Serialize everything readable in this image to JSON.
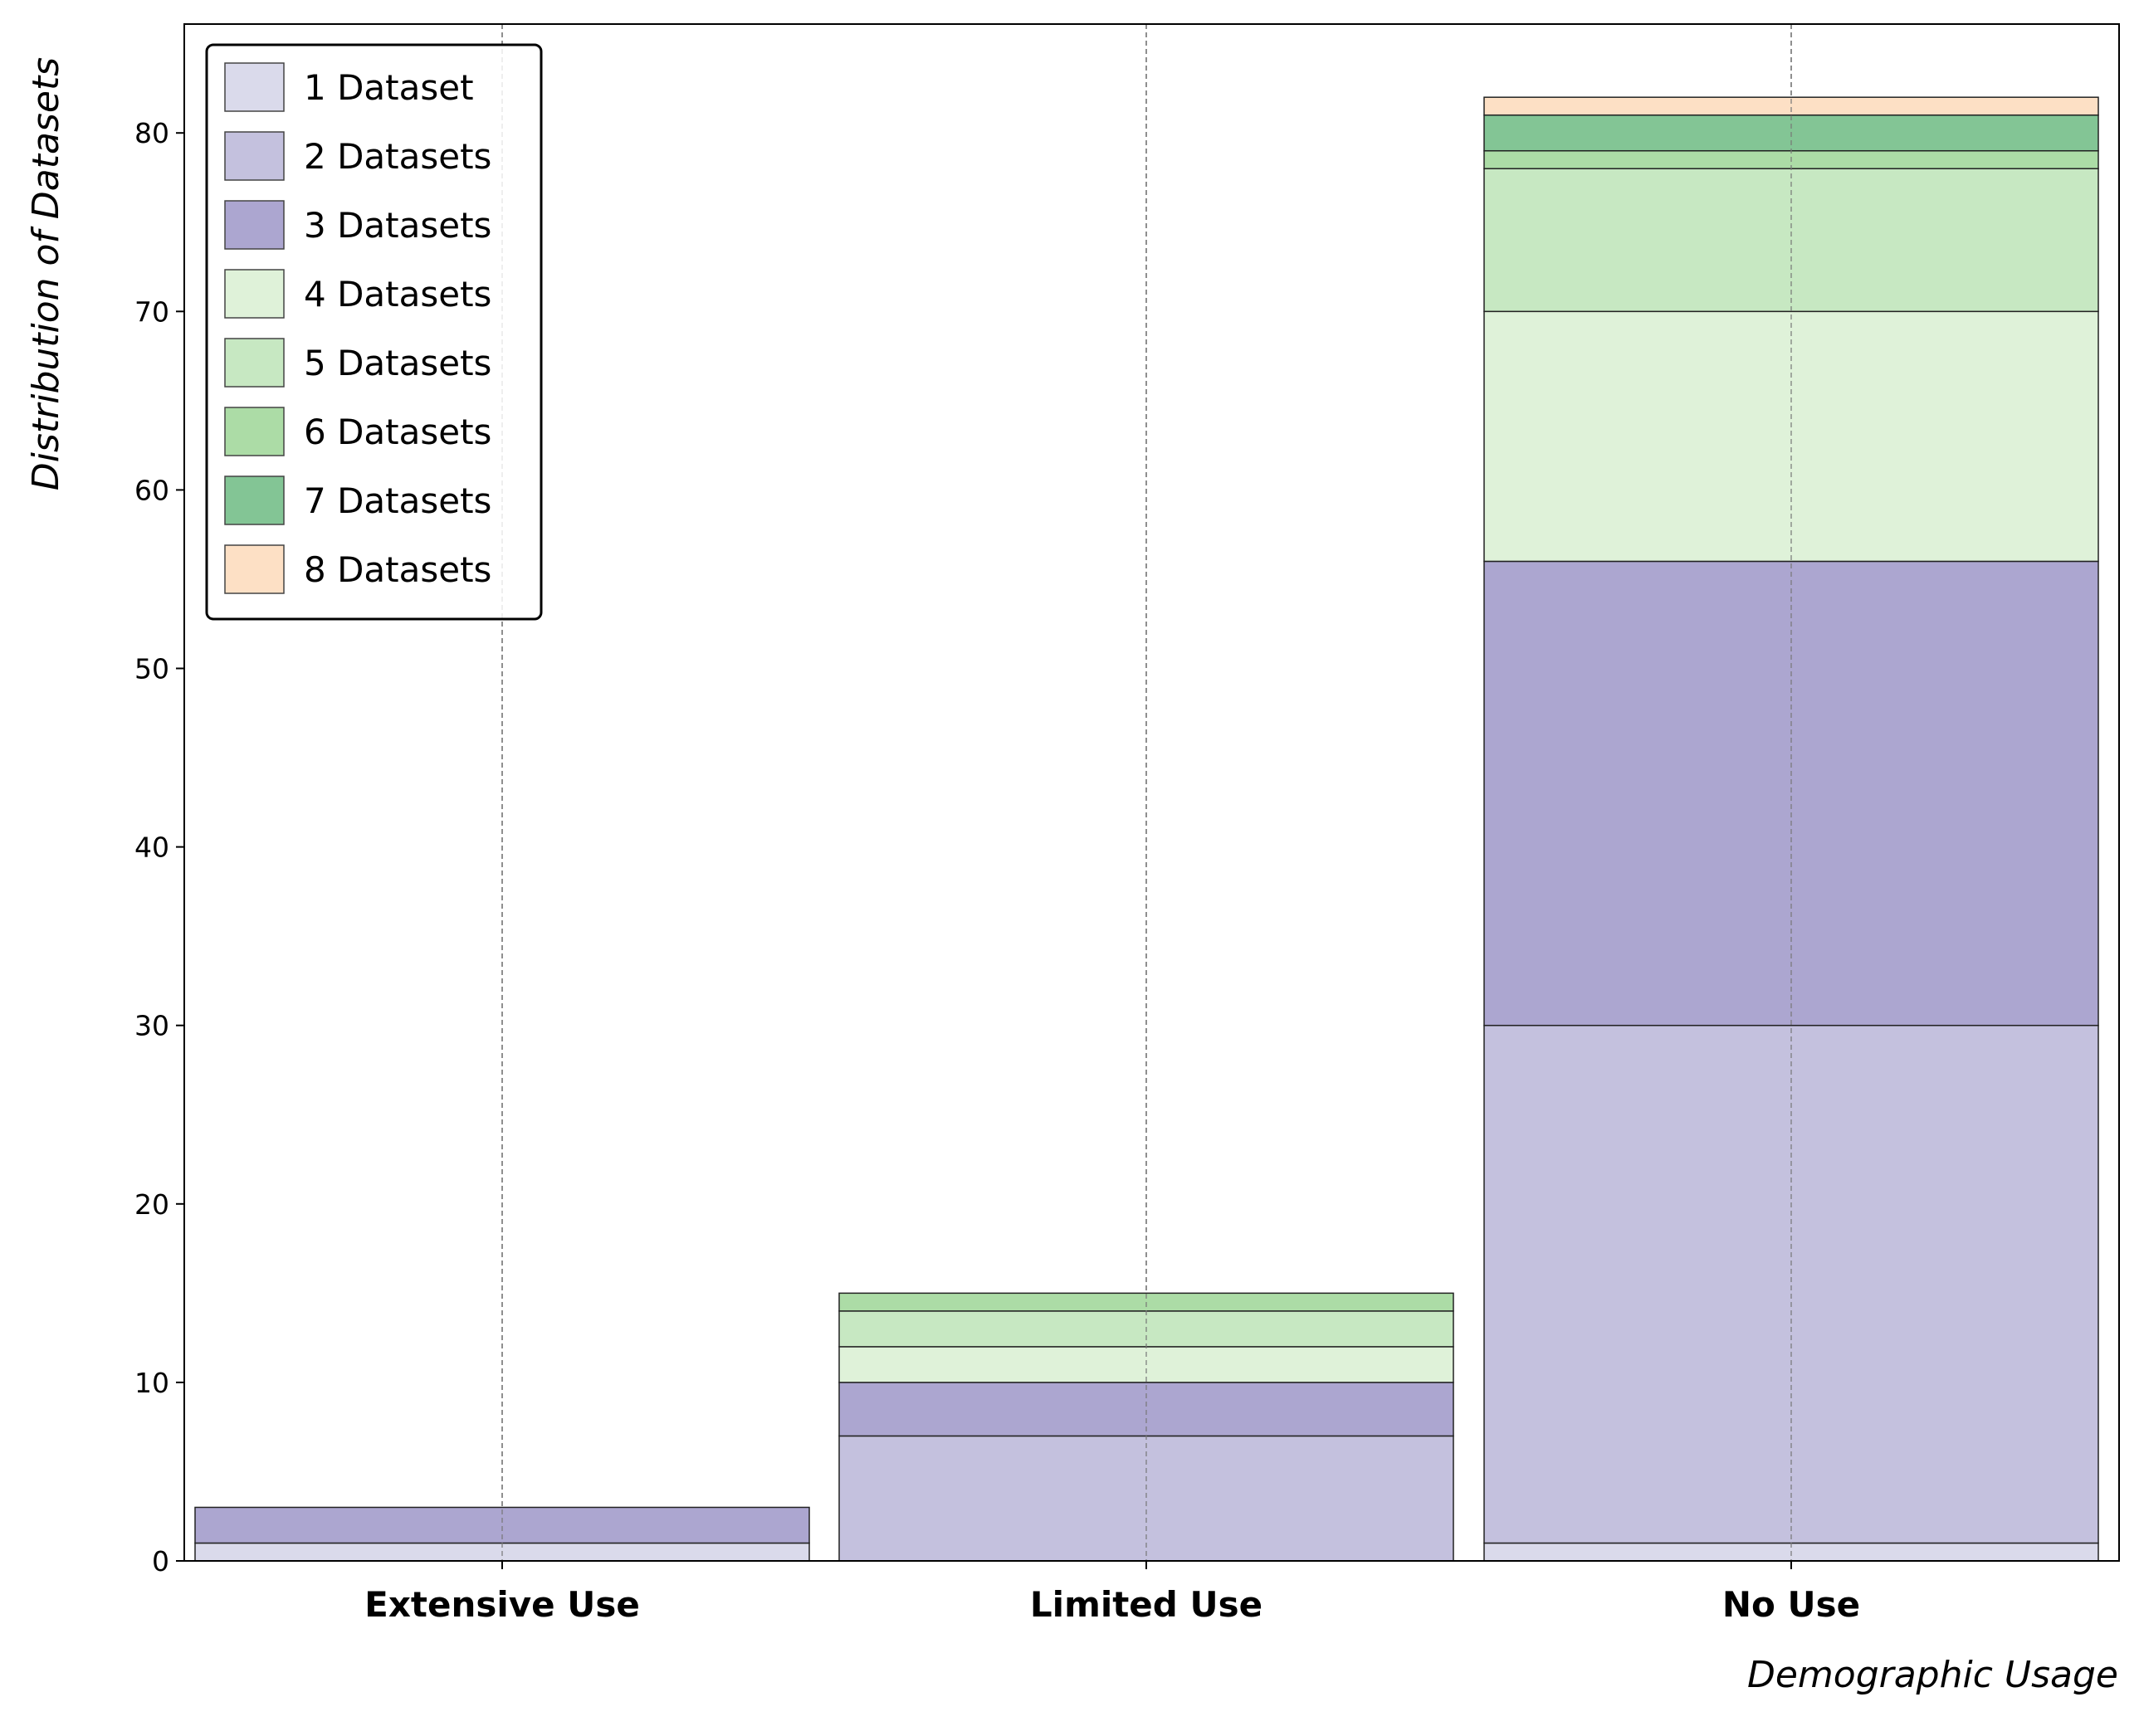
{
  "chart_data": {
    "type": "bar",
    "stacked": true,
    "categories": [
      "Extensive Use",
      "Limited Use",
      "No Use"
    ],
    "series": [
      {
        "name": "1 Dataset",
        "values": [
          1,
          0,
          1
        ],
        "color": "#dadaeb"
      },
      {
        "name": "2 Datasets",
        "values": [
          0,
          7,
          29
        ],
        "color": "#c4c1de"
      },
      {
        "name": "3 Datasets",
        "values": [
          2,
          3,
          26
        ],
        "color": "#aca6d0"
      },
      {
        "name": "4 Datasets",
        "values": [
          0,
          2,
          14
        ],
        "color": "#dff2d9"
      },
      {
        "name": "5 Datasets",
        "values": [
          0,
          2,
          8
        ],
        "color": "#c7e8c2"
      },
      {
        "name": "6 Datasets",
        "values": [
          0,
          1,
          1
        ],
        "color": "#acdca6"
      },
      {
        "name": "7 Datasets",
        "values": [
          0,
          0,
          2
        ],
        "color": "#83c595"
      },
      {
        "name": "8 Datasets",
        "values": [
          0,
          0,
          1
        ],
        "color": "#fde0c5"
      }
    ],
    "title": "",
    "xlabel": "Demographic Usage",
    "ylabel": "Distribution of Datasets",
    "ylim": [
      0,
      86.1
    ],
    "yticks": [
      0,
      10,
      20,
      30,
      40,
      50,
      60,
      70,
      80
    ],
    "grid": "vertical dashed at category centers",
    "legend_position": "top-left"
  }
}
